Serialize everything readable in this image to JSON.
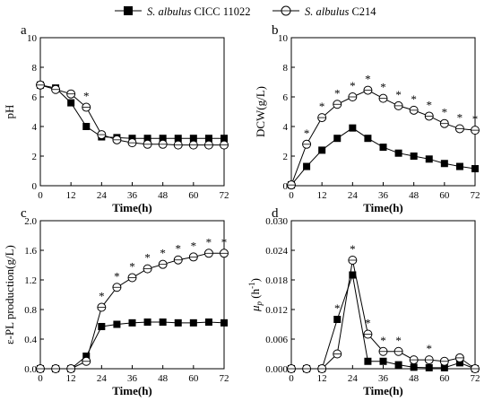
{
  "legend": {
    "series": [
      {
        "italic": "S. albulus",
        "plain": " CICC 11022",
        "marker": "square-filled"
      },
      {
        "italic": "S. albulus",
        "plain": " C214",
        "marker": "circle-crossed-open"
      }
    ]
  },
  "colors": {
    "line": "#000000",
    "open_fill": "#ffffff",
    "filled": "#000000"
  },
  "chart_data": [
    {
      "panel": "a",
      "type": "line",
      "ylabel": "pH",
      "xlabel": "Time(h)",
      "x": [
        0,
        6,
        12,
        18,
        24,
        30,
        36,
        42,
        48,
        54,
        60,
        66,
        72
      ],
      "xticks": [
        0,
        12,
        24,
        36,
        48,
        60,
        72
      ],
      "yticks": [
        "0",
        "2",
        "4",
        "6",
        "8",
        "10"
      ],
      "ylim": [
        0,
        10
      ],
      "series": [
        {
          "name": "S. albulus CICC 11022",
          "values": [
            6.8,
            6.6,
            5.6,
            4.0,
            3.3,
            3.25,
            3.2,
            3.2,
            3.2,
            3.2,
            3.2,
            3.2,
            3.2
          ]
        },
        {
          "name": "S. albulus C214",
          "values": [
            6.8,
            6.5,
            6.2,
            5.3,
            3.45,
            3.1,
            2.9,
            2.8,
            2.8,
            2.75,
            2.75,
            2.75,
            2.75
          ]
        }
      ],
      "significance_x": [
        18
      ]
    },
    {
      "panel": "b",
      "type": "line",
      "ylabel": "DCW(g/L)",
      "xlabel": "Time(h)",
      "x": [
        0,
        6,
        12,
        18,
        24,
        30,
        36,
        42,
        48,
        54,
        60,
        66,
        72
      ],
      "xticks": [
        0,
        12,
        24,
        36,
        48,
        60,
        72
      ],
      "yticks": [
        "0",
        "2",
        "4",
        "6",
        "8",
        "10"
      ],
      "ylim": [
        0,
        10
      ],
      "series": [
        {
          "name": "S. albulus CICC 11022",
          "values": [
            0.05,
            1.3,
            2.4,
            3.2,
            3.9,
            3.2,
            2.6,
            2.2,
            2.0,
            1.8,
            1.5,
            1.3,
            1.15
          ]
        },
        {
          "name": "S. albulus C214",
          "values": [
            0.05,
            2.8,
            4.6,
            5.5,
            6.0,
            6.45,
            5.9,
            5.4,
            5.1,
            4.7,
            4.2,
            3.85,
            3.75
          ]
        }
      ],
      "significance_x": [
        6,
        12,
        18,
        24,
        30,
        36,
        42,
        48,
        54,
        60,
        66,
        72
      ]
    },
    {
      "panel": "c",
      "type": "line",
      "ylabel": "ε-PL production(g/L)",
      "xlabel": "Time(h)",
      "x": [
        0,
        6,
        12,
        18,
        24,
        30,
        36,
        42,
        48,
        54,
        60,
        66,
        72
      ],
      "xticks": [
        0,
        12,
        24,
        36,
        48,
        60,
        72
      ],
      "yticks": [
        "0.0",
        "0.4",
        "0.8",
        "1.2",
        "1.6",
        "2.0"
      ],
      "ylim": [
        0,
        2.0
      ],
      "series": [
        {
          "name": "S. albulus CICC 11022",
          "values": [
            0,
            0,
            0,
            0.17,
            0.57,
            0.6,
            0.62,
            0.63,
            0.63,
            0.62,
            0.62,
            0.63,
            0.62
          ]
        },
        {
          "name": "S. albulus C214",
          "values": [
            0,
            0,
            0,
            0.1,
            0.83,
            1.1,
            1.23,
            1.35,
            1.41,
            1.47,
            1.51,
            1.56,
            1.56
          ]
        }
      ],
      "significance_x": [
        24,
        30,
        36,
        42,
        48,
        54,
        60,
        66,
        72
      ]
    },
    {
      "panel": "d",
      "type": "line",
      "ylabel_symbol": "μ",
      "ylabel_sub": "p",
      "ylabel_unit": " (h",
      "ylabel_sup": "-1",
      "ylabel_close": ")",
      "xlabel": "Time(h)",
      "x": [
        0,
        6,
        12,
        18,
        24,
        30,
        36,
        42,
        48,
        54,
        60,
        66,
        72
      ],
      "xticks": [
        0,
        12,
        24,
        36,
        48,
        60,
        72
      ],
      "yticks": [
        "0.000",
        "0.006",
        "0.012",
        "0.018",
        "0.024",
        "0.030"
      ],
      "ylim": [
        0,
        0.03
      ],
      "series": [
        {
          "name": "S. albulus CICC 11022",
          "values": [
            0,
            0,
            0,
            0.01,
            0.019,
            0.0015,
            0.0015,
            0.0008,
            0.0003,
            0.0002,
            0.0002,
            0.0012,
            0
          ]
        },
        {
          "name": "S. albulus C214",
          "values": [
            0,
            0,
            0,
            0.003,
            0.022,
            0.007,
            0.0035,
            0.0035,
            0.0018,
            0.0018,
            0.0015,
            0.0022,
            0
          ]
        }
      ],
      "significance_x": [
        18,
        24,
        30,
        36,
        42,
        54
      ]
    }
  ]
}
